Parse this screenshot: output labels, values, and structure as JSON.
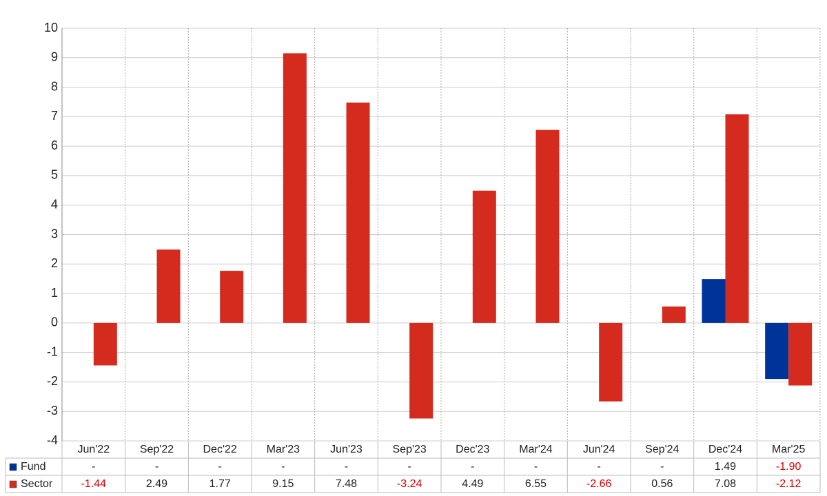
{
  "chart_data": {
    "type": "bar",
    "categories": [
      "Jun'22",
      "Sep'22",
      "Dec'22",
      "Mar'23",
      "Jun'23",
      "Sep'23",
      "Dec'23",
      "Mar'24",
      "Jun'24",
      "Sep'24",
      "Dec'24",
      "Mar'25"
    ],
    "series": [
      {
        "name": "Fund",
        "color": "#003399",
        "values": [
          null,
          null,
          null,
          null,
          null,
          null,
          null,
          null,
          null,
          null,
          1.49,
          -1.9
        ],
        "value_labels": [
          "-",
          "-",
          "-",
          "-",
          "-",
          "-",
          "-",
          "-",
          "-",
          "-",
          "1.49",
          "-1.90"
        ]
      },
      {
        "name": "Sector",
        "color": "#d52b1e",
        "values": [
          -1.44,
          2.49,
          1.77,
          9.15,
          7.48,
          -3.24,
          4.49,
          6.55,
          -2.66,
          0.56,
          7.08,
          -2.12
        ],
        "value_labels": [
          "-1.44",
          "2.49",
          "1.77",
          "9.15",
          "7.48",
          "-3.24",
          "4.49",
          "6.55",
          "-2.66",
          "0.56",
          "7.08",
          "-2.12"
        ]
      }
    ],
    "ylim": [
      -4,
      10
    ],
    "yticks": [
      -4,
      -3,
      -2,
      -1,
      0,
      1,
      2,
      3,
      4,
      5,
      6,
      7,
      8,
      9,
      10
    ],
    "grid": true
  }
}
